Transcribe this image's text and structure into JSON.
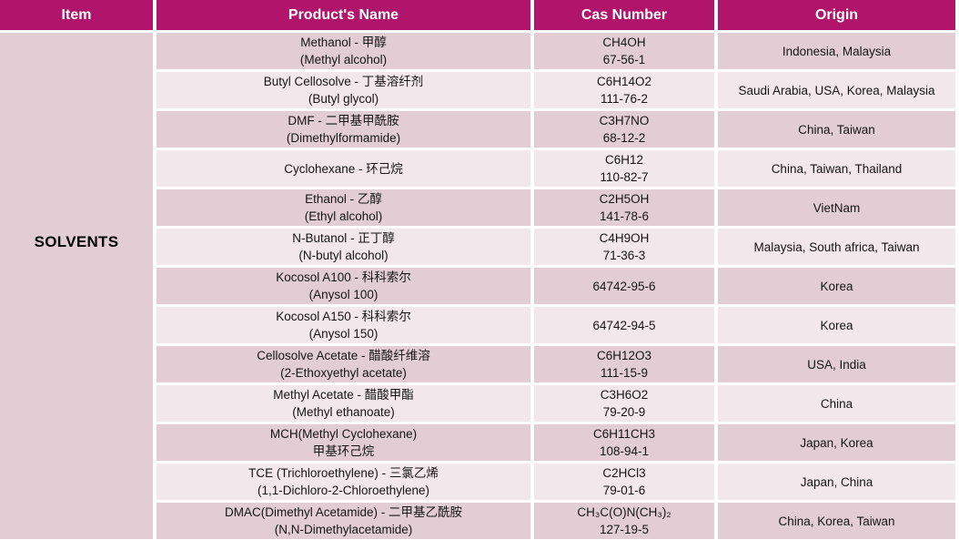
{
  "colors": {
    "header_bg": "#B1146B",
    "header_text": "#FFFFFF",
    "row_dark": "#E3CDD4",
    "row_light": "#F2E7EB",
    "body_text": "#151515"
  },
  "header": {
    "columns": [
      "Item",
      "Product's Name",
      "Cas Number",
      "Origin"
    ]
  },
  "item_label": "SOLVENTS",
  "rows": [
    {
      "name_line1": "Methanol - 甲醇",
      "name_line2": "(Methyl alcohol)",
      "cas_line1": "CH4OH",
      "cas_line2": "67-56-1",
      "origin": "Indonesia, Malaysia"
    },
    {
      "name_line1": "Butyl Cellosolve - 丁基溶纤剂",
      "name_line2": "(Butyl glycol)",
      "cas_line1": "C6H14O2",
      "cas_line2": "111-76-2",
      "origin": "Saudi Arabia, USA, Korea, Malaysia"
    },
    {
      "name_line1": "DMF - 二甲基甲酰胺",
      "name_line2": "(Dimethylformamide)",
      "cas_line1": "C3H7NO",
      "cas_line2": "68-12-2",
      "origin": "China, Taiwan"
    },
    {
      "name_line1": "Cyclohexane - 环己烷",
      "name_line2": "",
      "cas_line1": "C6H12",
      "cas_line2": "110-82-7",
      "origin": "China, Taiwan, Thailand"
    },
    {
      "name_line1": "Ethanol - 乙醇",
      "name_line2": "(Ethyl alcohol)",
      "cas_line1": "C2H5OH",
      "cas_line2": "141-78-6",
      "origin": "VietNam"
    },
    {
      "name_line1": "N-Butanol - 正丁醇",
      "name_line2": "(N-butyl alcohol)",
      "cas_line1": "C4H9OH",
      "cas_line2": "71-36-3",
      "origin": "Malaysia, South africa, Taiwan"
    },
    {
      "name_line1": "Kocosol A100 - 科科索尔",
      "name_line2": "(Anysol 100)",
      "cas_line1": "64742-95-6",
      "cas_line2": "",
      "origin": "Korea"
    },
    {
      "name_line1": "Kocosol A150 - 科科索尔",
      "name_line2": "(Anysol 150)",
      "cas_line1": "64742-94-5",
      "cas_line2": "",
      "origin": "Korea"
    },
    {
      "name_line1": "Cellosolve Acetate - 醋酸纤维溶",
      "name_line2": "(2-Ethoxyethyl acetate)",
      "cas_line1": "C6H12O3",
      "cas_line2": "111-15-9",
      "origin": "USA, India"
    },
    {
      "name_line1": "Methyl Acetate - 醋酸甲酯",
      "name_line2": "(Methyl ethanoate)",
      "cas_line1": "C3H6O2",
      "cas_line2": "79-20-9",
      "origin": "China"
    },
    {
      "name_line1": "MCH(Methyl Cyclohexane)",
      "name_line2": "甲基环己烷",
      "cas_line1": "C6H11CH3",
      "cas_line2": "108-94-1",
      "origin": "Japan, Korea"
    },
    {
      "name_line1": "TCE (Trichloroethylene) - 三氯乙烯",
      "name_line2": "(1,1-Dichloro-2-Chloroethylene)",
      "cas_line1": "C2HCl3",
      "cas_line2": "79-01-6",
      "origin": "Japan, China"
    },
    {
      "name_line1": "DMAC(Dimethyl Acetamide) - 二甲基乙酰胺",
      "name_line2": "(N,N-Dimethylacetamide)",
      "cas_line1": "CH₃C(O)N(CH₃)₂",
      "cas_line2": "127-19-5",
      "origin": "China, Korea, Taiwan"
    }
  ]
}
